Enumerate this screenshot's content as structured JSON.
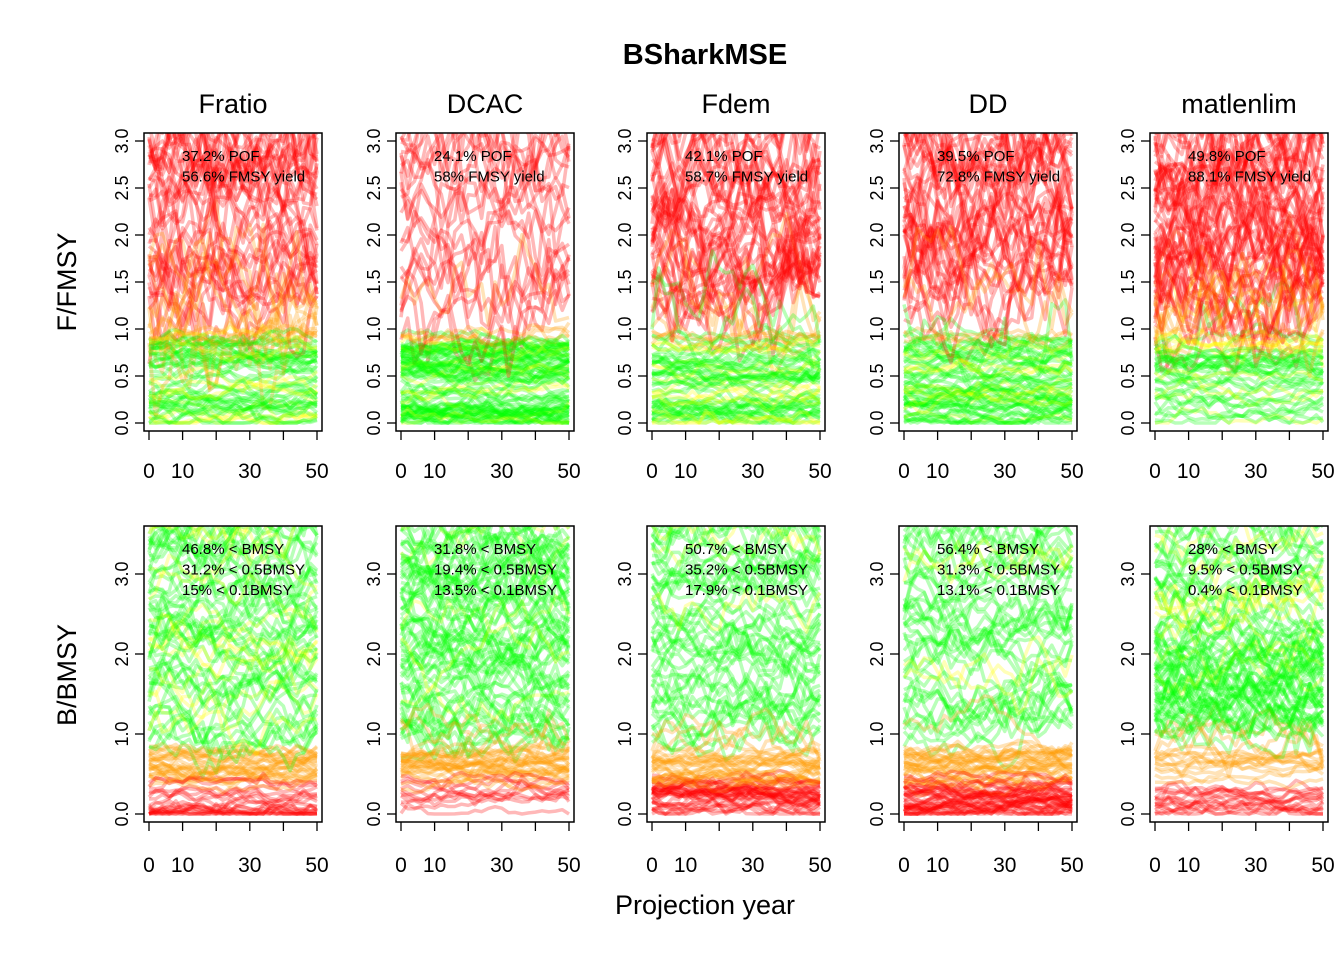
{
  "title": "BSharkMSE",
  "xlabel": "Projection year",
  "colors": {
    "good": "#00ff00",
    "mid": "#ffff00",
    "bad": "#ff0000",
    "frame": "#000000"
  },
  "chart_data": [
    {
      "type": "line",
      "row": "F/FMSY",
      "ylabel": "F/FMSY",
      "xlim": [
        0,
        50
      ],
      "ylim": [
        0,
        3
      ],
      "xticks": [
        0,
        10,
        30,
        50
      ],
      "xtick_labels": [
        "0",
        "10",
        "30",
        "50"
      ],
      "yticks": [
        0,
        0.5,
        1,
        1.5,
        2,
        2.5,
        3
      ],
      "ytick_labels": [
        "0.0",
        "0.5",
        "1.0",
        "1.5",
        "2.0",
        "2.5",
        "3.0"
      ],
      "panels": [
        {
          "name": "Fratio",
          "annotations": [
            "37.2% POF",
            "56.6% FMSY yield"
          ]
        },
        {
          "name": "DCAC",
          "annotations": [
            "24.1% POF",
            "58% FMSY yield"
          ]
        },
        {
          "name": "Fdem",
          "annotations": [
            "42.1% POF",
            "58.7% FMSY yield"
          ]
        },
        {
          "name": "DD",
          "annotations": [
            "39.5% POF",
            "72.8% FMSY yield"
          ]
        },
        {
          "name": "matlenlim",
          "annotations": [
            "49.8% POF",
            "88.1% FMSY yield"
          ]
        }
      ]
    },
    {
      "type": "line",
      "row": "B/BMSY",
      "ylabel": "B/BMSY",
      "xlim": [
        0,
        50
      ],
      "ylim": [
        0,
        3.5
      ],
      "xticks": [
        0,
        10,
        30,
        50
      ],
      "xtick_labels": [
        "0",
        "10",
        "30",
        "50"
      ],
      "yticks": [
        0,
        1,
        2,
        3
      ],
      "ytick_labels": [
        "0.0",
        "1.0",
        "2.0",
        "3.0"
      ],
      "panels": [
        {
          "name": "Fratio",
          "annotations": [
            "46.8% < BMSY",
            "31.2% < 0.5BMSY",
            "15% < 0.1BMSY"
          ]
        },
        {
          "name": "DCAC",
          "annotations": [
            "31.8% < BMSY",
            "19.4% < 0.5BMSY",
            "13.5% < 0.1BMSY"
          ]
        },
        {
          "name": "Fdem",
          "annotations": [
            "50.7% < BMSY",
            "35.2% < 0.5BMSY",
            "17.9% < 0.1BMSY"
          ]
        },
        {
          "name": "DD",
          "annotations": [
            "56.4% < BMSY",
            "31.3% < 0.5BMSY",
            "13.1% < 0.1BMSY"
          ]
        },
        {
          "name": "matlenlim",
          "annotations": [
            "28% < BMSY",
            "9.5% < 0.5BMSY",
            "0.4% < 0.1BMSY"
          ]
        }
      ]
    }
  ]
}
